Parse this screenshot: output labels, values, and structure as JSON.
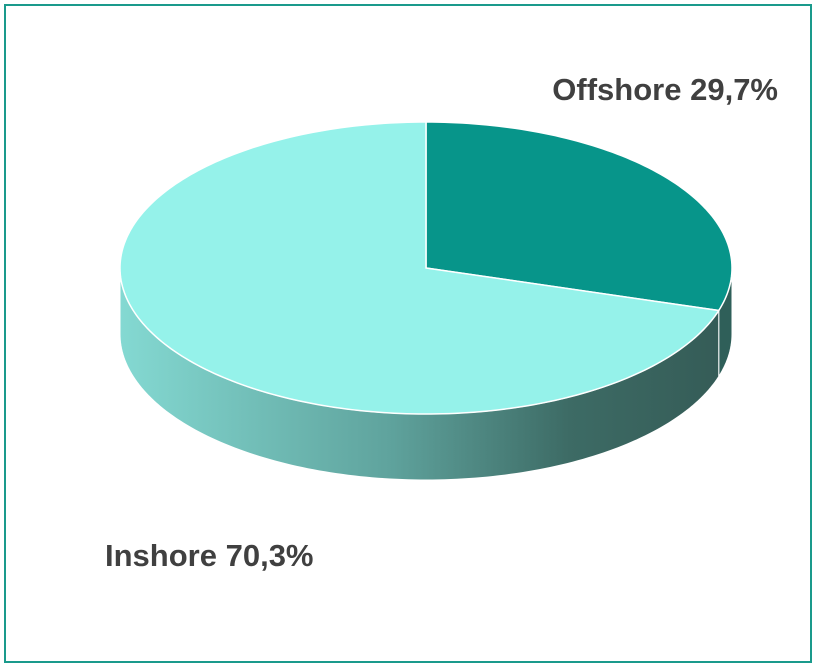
{
  "chart_data": {
    "type": "pie3d",
    "categories": [
      "Offshore",
      "Inshore"
    ],
    "values": [
      29.7,
      70.3
    ],
    "value_labels": [
      "29,7%",
      "70,3%"
    ],
    "colors": [
      "#07958a",
      "#95f2ea"
    ]
  }
}
